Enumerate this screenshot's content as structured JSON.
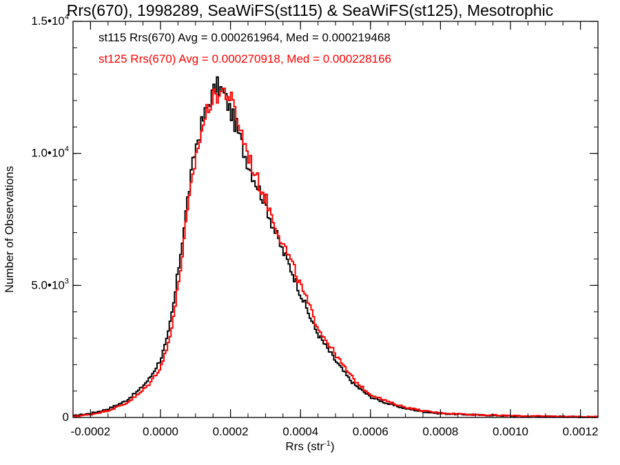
{
  "chart_data": {
    "type": "histogram",
    "title": "Rrs(670), 1998289, SeaWiFS(st115) & SeaWiFS(st125), Mesotrophic",
    "xlabel": "Rrs (str",
    "xlabel_sup": "-1",
    "xlabel_suffix": ")",
    "ylabel": "Number of Observations",
    "xlim": [
      -0.00025,
      0.00125
    ],
    "ylim": [
      0,
      15000
    ],
    "x_ticks": [
      {
        "value": -0.0002,
        "label": "-0.0002"
      },
      {
        "value": 0.0,
        "label": "0.0000"
      },
      {
        "value": 0.0002,
        "label": "0.0002"
      },
      {
        "value": 0.0004,
        "label": "0.0004"
      },
      {
        "value": 0.0006,
        "label": "0.0006"
      },
      {
        "value": 0.0008,
        "label": "0.0008"
      },
      {
        "value": 0.001,
        "label": "0.0010"
      },
      {
        "value": 0.0012,
        "label": "0.0012"
      }
    ],
    "y_ticks": [
      {
        "value": 0,
        "mantissa": "0",
        "exp": ""
      },
      {
        "value": 5000,
        "mantissa": "5.0•10",
        "exp": "3"
      },
      {
        "value": 10000,
        "mantissa": "1.0•10",
        "exp": "4"
      },
      {
        "value": 15000,
        "mantissa": "1.5•10",
        "exp": "4"
      }
    ],
    "annotations": [
      "st115 Rrs(670) Avg = 0.000261964, Med = 0.000219468",
      "st125 Rrs(670) Avg = 0.000270918, Med = 0.000228166"
    ],
    "series": [
      {
        "color": "#000000",
        "points": [
          [
            -0.00025,
            60
          ],
          [
            -0.0002,
            150
          ],
          [
            -0.00015,
            320
          ],
          [
            -0.0001,
            620
          ],
          [
            -6e-05,
            1050
          ],
          [
            -3e-05,
            1500
          ],
          [
            0.0,
            2200
          ],
          [
            2e-05,
            3000
          ],
          [
            4e-05,
            4500
          ],
          [
            6e-05,
            6500
          ],
          [
            8e-05,
            8500
          ],
          [
            0.0001,
            10200
          ],
          [
            0.00012,
            11200
          ],
          [
            0.00014,
            12000
          ],
          [
            0.00016,
            12600
          ],
          [
            0.00018,
            12300
          ],
          [
            0.0002,
            11600
          ],
          [
            0.00022,
            10900
          ],
          [
            0.00024,
            10000
          ],
          [
            0.00026,
            9300
          ],
          [
            0.00028,
            8700
          ],
          [
            0.0003,
            8100
          ],
          [
            0.00032,
            7300
          ],
          [
            0.00034,
            6600
          ],
          [
            0.00036,
            6000
          ],
          [
            0.00038,
            5400
          ],
          [
            0.0004,
            4700
          ],
          [
            0.00042,
            4050
          ],
          [
            0.00044,
            3400
          ],
          [
            0.00046,
            2950
          ],
          [
            0.00048,
            2550
          ],
          [
            0.0005,
            2150
          ],
          [
            0.00052,
            1800
          ],
          [
            0.00054,
            1450
          ],
          [
            0.00056,
            1180
          ],
          [
            0.00058,
            980
          ],
          [
            0.0006,
            780
          ],
          [
            0.00065,
            520
          ],
          [
            0.0007,
            340
          ],
          [
            0.00075,
            220
          ],
          [
            0.0008,
            150
          ],
          [
            0.0009,
            95
          ],
          [
            0.001,
            60
          ],
          [
            0.0011,
            40
          ],
          [
            0.0012,
            25
          ],
          [
            0.00125,
            20
          ]
        ]
      },
      {
        "color": "#ff0000",
        "points": [
          [
            -0.00025,
            40
          ],
          [
            -0.0002,
            110
          ],
          [
            -0.00015,
            260
          ],
          [
            -0.0001,
            520
          ],
          [
            -6e-05,
            900
          ],
          [
            -3e-05,
            1300
          ],
          [
            0.0,
            1900
          ],
          [
            2e-05,
            2650
          ],
          [
            4e-05,
            4000
          ],
          [
            6e-05,
            5900
          ],
          [
            8e-05,
            8000
          ],
          [
            0.0001,
            9800
          ],
          [
            0.00012,
            11000
          ],
          [
            0.00014,
            11900
          ],
          [
            0.00016,
            12200
          ],
          [
            0.00018,
            12400
          ],
          [
            0.0002,
            12100
          ],
          [
            0.00022,
            11300
          ],
          [
            0.00024,
            10400
          ],
          [
            0.00026,
            9600
          ],
          [
            0.00028,
            8900
          ],
          [
            0.0003,
            8300
          ],
          [
            0.00032,
            7600
          ],
          [
            0.00034,
            6900
          ],
          [
            0.00036,
            6300
          ],
          [
            0.00038,
            5700
          ],
          [
            0.0004,
            5000
          ],
          [
            0.00042,
            4400
          ],
          [
            0.00044,
            3700
          ],
          [
            0.00046,
            3200
          ],
          [
            0.00048,
            2800
          ],
          [
            0.0005,
            2400
          ],
          [
            0.00052,
            2000
          ],
          [
            0.00054,
            1650
          ],
          [
            0.00056,
            1330
          ],
          [
            0.00058,
            1100
          ],
          [
            0.0006,
            880
          ],
          [
            0.00065,
            590
          ],
          [
            0.0007,
            390
          ],
          [
            0.00075,
            250
          ],
          [
            0.0008,
            170
          ],
          [
            0.0009,
            105
          ],
          [
            0.001,
            65
          ],
          [
            0.0011,
            45
          ],
          [
            0.0012,
            28
          ],
          [
            0.00125,
            22
          ]
        ]
      }
    ],
    "grid": false,
    "legend": "none"
  }
}
